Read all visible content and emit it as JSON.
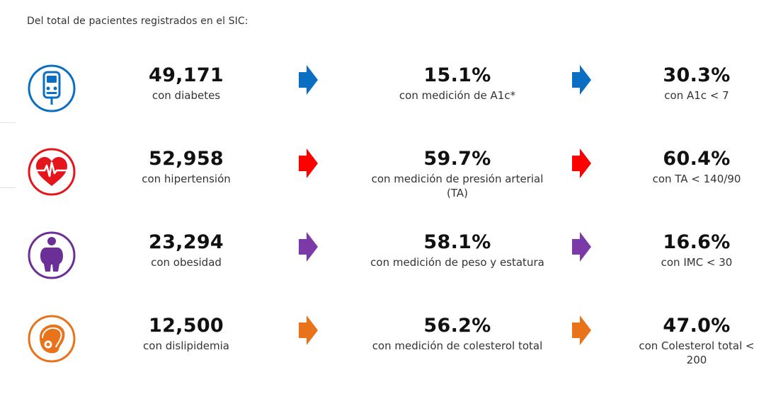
{
  "intro": "Del total de pacientes registrados en el SIC:",
  "colors": {
    "diabetes": "#0a6fc2",
    "hypertension": "#e4161b",
    "obesity": "#6b2f98",
    "dyslipidemia": "#e8731a"
  },
  "rows": [
    {
      "icon": "glucometer-icon",
      "color": "#0a6fc2",
      "arrow_color": "#0a6fc2",
      "total": "49,171",
      "total_label": "con diabetes",
      "measured": "15.1%",
      "measured_label": "con medición de A1c*",
      "controlled": "30.3%",
      "controlled_label": "con A1c < 7"
    },
    {
      "icon": "heart-pulse-icon",
      "color": "#e4161b",
      "arrow_color": "#ff0000",
      "total": "52,958",
      "total_label": "con hipertensión",
      "measured": "59.7%",
      "measured_label": "con medición de presión arterial (TA)",
      "controlled": "60.4%",
      "controlled_label": "con TA < 140/90"
    },
    {
      "icon": "person-obesity-icon",
      "color": "#6b2f98",
      "arrow_color": "#7b3aa8",
      "total": "23,294",
      "total_label": "con obesidad",
      "measured": "58.1%",
      "measured_label": "con medición de peso y estatura",
      "controlled": "16.6%",
      "controlled_label": "con IMC < 30"
    },
    {
      "icon": "steak-icon",
      "color": "#e8731a",
      "arrow_color": "#e8731a",
      "total": "12,500",
      "total_label": "con dislipidemia",
      "measured": "56.2%",
      "measured_label": "con medición de colesterol total",
      "controlled": "47.0%",
      "controlled_label": "con Colesterol total < 200"
    }
  ]
}
